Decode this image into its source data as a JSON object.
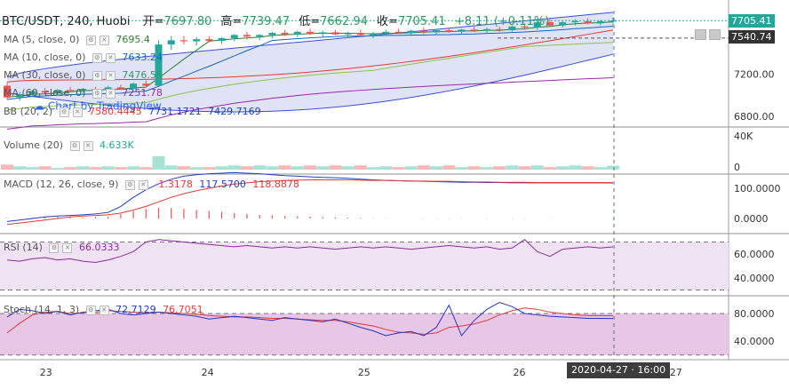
{
  "header": {
    "symbol": "BTC/USDT, 240, Huobi",
    "open_label": "开=",
    "open": "7697.80",
    "high_label": "高=",
    "high": "7739.47",
    "low_label": "低=",
    "low": "7662.94",
    "close_label": "收=",
    "close": "7705.41",
    "change": "+8.11 (+0.11%)"
  },
  "legends": {
    "ma5": {
      "name": "MA (5, close, 0)",
      "value": "7695.4"
    },
    "ma10": {
      "name": "MA (10, close, 0)",
      "value": "7633.24"
    },
    "ma30": {
      "name": "MA (30, close, 0)",
      "value": "7476.55"
    },
    "ma60": {
      "name": "MA (60, close, 0)",
      "value": "7251.78"
    },
    "bb": {
      "name": "BB (20, 2)",
      "upper": "7580.4445",
      "middle": "7731.1721",
      "lower": "7429.7169"
    },
    "volume": {
      "name": "Volume (20)",
      "value": "4.633K"
    },
    "macd": {
      "name": "MACD (12, 26, close, 9)",
      "v1": "-1.3178",
      "v2": "117.5700",
      "v3": "118.8878"
    },
    "rsi": {
      "name": "RSI (14)",
      "value": "66.0333"
    },
    "stoch": {
      "name": "Stoch (14, 1, 3)",
      "k": "72.7129",
      "d": "76.7051"
    }
  },
  "watermark": "Chart by TradingView",
  "price_labels": {
    "last": "7705.41",
    "ma": "7540.74"
  },
  "crosshair_time": "2020-04-27 · 16:00",
  "colors": {
    "up": "#26a69a",
    "up_vol": "#a8e2d4",
    "down": "#ef5350",
    "down_vol": "#f7b9b7",
    "ma5": "#2e7d32",
    "ma10": "#1565c0",
    "ma30": "#8bc34a",
    "ma60": "#9c27b0",
    "bb_band": "#b8c0e8",
    "bb_line": "#3b4fd8",
    "bb_mid": "#e53935",
    "macd": "#1f3fbf",
    "signal": "#e53935",
    "rsi": "#8e2aa0",
    "rsi_fill": "#efe3f3",
    "stoch_k": "#2438c6",
    "stoch_d": "#e53935",
    "stoch_fill": "#e7c6e6",
    "last_box": "#26a69a",
    "ma_box": "#333333",
    "axis_text": "#333333"
  },
  "chart_data": [
    {
      "type": "candlestick",
      "x_ticks": [
        "23",
        "24",
        "25",
        "26",
        "27"
      ],
      "y_ticks": [
        "7200.00",
        "6800.00"
      ],
      "ohlc": [
        [
          7090,
          7120,
          6960,
          6980
        ],
        [
          6980,
          7030,
          6950,
          7010
        ],
        [
          7010,
          7050,
          6990,
          7040
        ],
        [
          7040,
          7070,
          7010,
          7025
        ],
        [
          7025,
          7060,
          7000,
          7050
        ],
        [
          7050,
          7080,
          7030,
          7045
        ],
        [
          7045,
          7070,
          7020,
          7060
        ],
        [
          7060,
          7080,
          7040,
          7050
        ],
        [
          7050,
          7090,
          7035,
          7075
        ],
        [
          7075,
          7100,
          7050,
          7060
        ],
        [
          7060,
          7120,
          7050,
          7110
        ],
        [
          7110,
          7140,
          7080,
          7090
        ],
        [
          7090,
          7520,
          7090,
          7480
        ],
        [
          7480,
          7560,
          7430,
          7520
        ],
        [
          7520,
          7560,
          7480,
          7510
        ],
        [
          7510,
          7550,
          7470,
          7530
        ],
        [
          7530,
          7560,
          7500,
          7515
        ],
        [
          7515,
          7550,
          7490,
          7540
        ],
        [
          7540,
          7580,
          7510,
          7570
        ],
        [
          7570,
          7600,
          7530,
          7555
        ],
        [
          7555,
          7580,
          7520,
          7570
        ],
        [
          7570,
          7600,
          7540,
          7590
        ],
        [
          7590,
          7620,
          7560,
          7575
        ],
        [
          7575,
          7610,
          7550,
          7600
        ],
        [
          7600,
          7630,
          7570,
          7580
        ],
        [
          7580,
          7610,
          7555,
          7595
        ],
        [
          7595,
          7620,
          7570,
          7575
        ],
        [
          7575,
          7600,
          7550,
          7590
        ],
        [
          7590,
          7620,
          7560,
          7570
        ],
        [
          7570,
          7600,
          7540,
          7585
        ],
        [
          7585,
          7620,
          7560,
          7600
        ],
        [
          7600,
          7630,
          7580,
          7590
        ],
        [
          7590,
          7620,
          7560,
          7610
        ],
        [
          7610,
          7640,
          7580,
          7595
        ],
        [
          7595,
          7625,
          7570,
          7615
        ],
        [
          7615,
          7640,
          7590,
          7600
        ],
        [
          7600,
          7630,
          7580,
          7620
        ],
        [
          7620,
          7650,
          7600,
          7610
        ],
        [
          7610,
          7640,
          7590,
          7625
        ],
        [
          7625,
          7650,
          7600,
          7615
        ],
        [
          7615,
          7660,
          7600,
          7650
        ],
        [
          7650,
          7680,
          7620,
          7640
        ],
        [
          7640,
          7700,
          7620,
          7690
        ],
        [
          7690,
          7720,
          7650,
          7660
        ],
        [
          7660,
          7700,
          7640,
          7690
        ],
        [
          7690,
          7720,
          7660,
          7700
        ],
        [
          7700,
          7730,
          7670,
          7680
        ],
        [
          7680,
          7710,
          7660,
          7700
        ],
        [
          7697.8,
          7739.47,
          7662.94,
          7705.41
        ]
      ],
      "series": [
        {
          "name": "MA (5, close, 0)",
          "last": 7695.4
        },
        {
          "name": "MA (10, close, 0)",
          "last": 7633.24
        },
        {
          "name": "MA (30, close, 0)",
          "last": 7476.55
        },
        {
          "name": "MA (60, close, 0)",
          "last": 7251.78
        },
        {
          "name": "BB (20, 2)",
          "values": [
            7580.4445,
            7731.1721,
            7429.7169
          ]
        }
      ]
    },
    {
      "type": "bar",
      "title": "Volume (20)",
      "y_ticks": [
        "40K",
        "0"
      ],
      "values": [
        6,
        4,
        3,
        4,
        2,
        3,
        4,
        3,
        4,
        3,
        4,
        3,
        16,
        5,
        4,
        3,
        3,
        4,
        5,
        4,
        5,
        4,
        5,
        4,
        5,
        4,
        5,
        4,
        5,
        3,
        4,
        3,
        4,
        5,
        4,
        5,
        3,
        4,
        3,
        4,
        5,
        4,
        5,
        3,
        4,
        5,
        4,
        3,
        4.633
      ]
    },
    {
      "type": "bar",
      "title": "MACD (12, 26, close, 9)",
      "y_ticks": [
        "100.0000",
        "0.0000"
      ],
      "macd": [
        -10,
        -5,
        0,
        5,
        8,
        10,
        12,
        15,
        20,
        40,
        70,
        95,
        115,
        130,
        140,
        145,
        148,
        150,
        152,
        150,
        148,
        145,
        142,
        140,
        138,
        136,
        135,
        133,
        130,
        128,
        126,
        125,
        124,
        123,
        122,
        121,
        120,
        120,
        119,
        119,
        118,
        118,
        118,
        118,
        118,
        118,
        118,
        118,
        117.57
      ],
      "signal": [
        -20,
        -15,
        -10,
        -5,
        0,
        5,
        8,
        10,
        12,
        18,
        28,
        40,
        55,
        70,
        82,
        92,
        100,
        108,
        114,
        118,
        122,
        124,
        126,
        127,
        128,
        128,
        128,
        128,
        127,
        126,
        126,
        125,
        124,
        124,
        123,
        123,
        122,
        121,
        121,
        120,
        120,
        120,
        119,
        119,
        119,
        119,
        119,
        119,
        118.8878
      ],
      "hist": [
        2,
        1,
        3,
        4,
        5,
        4,
        3,
        5,
        6,
        15,
        25,
        32,
        35,
        35,
        32,
        28,
        25,
        22,
        19,
        15,
        12,
        10,
        8,
        7,
        6,
        5,
        4,
        3,
        2,
        1,
        1,
        0,
        0,
        -1,
        -1,
        -1,
        -1,
        0,
        -1,
        0,
        -1,
        -1,
        0,
        -1,
        0,
        0,
        0,
        0,
        -1.3178
      ]
    },
    {
      "type": "line",
      "title": "RSI (14)",
      "y_ticks": [
        "60.0000",
        "40.0000"
      ],
      "values": [
        55,
        54,
        56,
        57,
        55,
        56,
        54,
        53,
        55,
        58,
        62,
        70,
        72,
        71,
        70,
        69,
        68,
        67,
        66,
        67,
        66,
        65,
        66,
        65,
        66,
        65,
        64,
        65,
        66,
        65,
        66,
        65,
        64,
        65,
        66,
        67,
        66,
        65,
        66,
        64,
        65,
        72,
        62,
        58,
        64,
        65,
        66,
        65,
        66.0333
      ]
    },
    {
      "type": "line",
      "title": "Stoch (14, 1, 3)",
      "y_ticks": [
        "80.0000",
        "40.0000"
      ],
      "k": [
        75,
        86,
        84,
        80,
        83,
        78,
        82,
        84,
        86,
        80,
        78,
        80,
        82,
        80,
        78,
        76,
        72,
        74,
        76,
        74,
        72,
        70,
        74,
        72,
        70,
        68,
        72,
        66,
        60,
        55,
        48,
        52,
        54,
        48,
        60,
        92,
        48,
        70,
        86,
        96,
        90,
        80,
        78,
        76,
        75,
        74,
        73,
        73,
        72.7129
      ],
      "d": [
        52,
        66,
        78,
        82,
        83,
        80,
        81,
        82,
        84,
        83,
        82,
        81,
        82,
        81,
        80,
        79,
        77,
        76,
        75,
        75,
        74,
        73,
        73,
        72,
        71,
        70,
        70,
        68,
        65,
        62,
        57,
        53,
        52,
        50,
        52,
        60,
        62,
        65,
        70,
        78,
        84,
        88,
        86,
        82,
        80,
        78,
        77,
        77,
        76.7051
      ]
    }
  ]
}
